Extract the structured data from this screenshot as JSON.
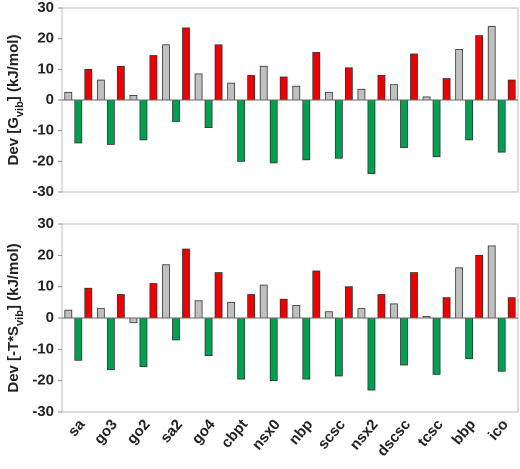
{
  "chart_data": [
    {
      "type": "bar",
      "ylabel": [
        "Dev [G",
        "vib",
        "] (kJ/mol)"
      ],
      "ylim": [
        -30,
        30
      ],
      "yticks": [
        -30,
        -20,
        -10,
        0,
        10,
        20,
        30
      ],
      "series": [
        {
          "color": "#c0c0c0",
          "values": [
            2.5,
            6.5,
            1.5,
            18,
            8.5,
            5.5,
            11,
            4.5,
            2.5,
            3.5,
            5,
            1,
            16.5,
            24
          ]
        },
        {
          "color": "#00a050",
          "values": [
            -14,
            -14.5,
            -13,
            -7,
            -9,
            -20,
            -20.5,
            -19.5,
            -19,
            -24,
            -15.5,
            -18.5,
            -13,
            -17
          ]
        },
        {
          "color": "#ee0000",
          "values": [
            10,
            11,
            14.5,
            23.5,
            18,
            8,
            7.5,
            15.5,
            10.5,
            8,
            15,
            7,
            21,
            6.5
          ]
        }
      ]
    },
    {
      "type": "bar",
      "ylabel": [
        "Dev [-T*S",
        "vib",
        "] (kJ/mol)"
      ],
      "categories": [
        "sa",
        "go3",
        "go2",
        "sa2",
        "go4",
        "cbpt",
        "nsx0",
        "nbp",
        "scsc",
        "nsx2",
        "dscsc",
        "tcsc",
        "bbp",
        "ico"
      ],
      "ylim": [
        -30,
        30
      ],
      "yticks": [
        -30,
        -20,
        -10,
        0,
        10,
        20,
        30
      ],
      "series": [
        {
          "color": "#c0c0c0",
          "values": [
            2.5,
            3,
            -1.5,
            17,
            5.5,
            5,
            10.5,
            4,
            2,
            3,
            4.5,
            0.5,
            16,
            23
          ]
        },
        {
          "color": "#00a050",
          "values": [
            -13.5,
            -16.5,
            -15.5,
            -7,
            -12,
            -19.5,
            -20,
            -19.5,
            -18.5,
            -23,
            -15,
            -18,
            -13,
            -17
          ]
        },
        {
          "color": "#ee0000",
          "values": [
            9.5,
            7.5,
            11,
            22,
            14.5,
            7.5,
            6,
            15,
            10,
            7.5,
            14.5,
            6.5,
            20,
            6.5
          ]
        }
      ]
    }
  ]
}
